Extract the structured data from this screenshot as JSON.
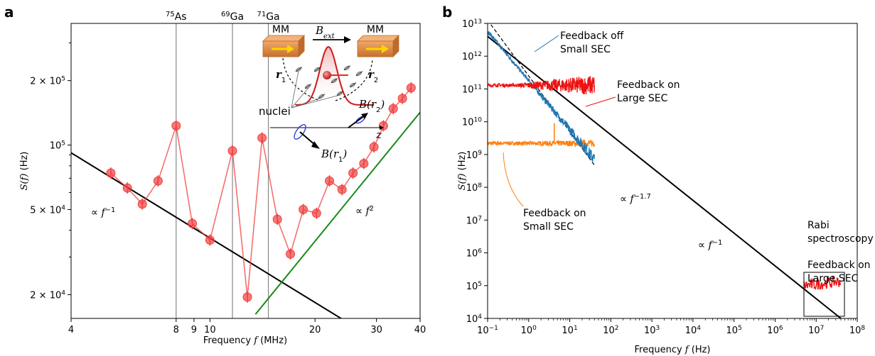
{
  "colors": {
    "data_red": "#f04040",
    "fit_black": "#000000",
    "fit_green": "#1a8a1a",
    "feedback_off_small": "#1f77b4",
    "feedback_on_large": "#ee1111",
    "feedback_on_small": "#ff7f0e",
    "grid_gray": "#888888",
    "magnet": "#e8924a"
  },
  "chart_data": [
    {
      "panel": "a",
      "type": "line",
      "xlabel_prefix": "Frequency ",
      "xlabel_var": "f",
      "xlabel_suffix": " (MHz)",
      "ylabel_prefix": "S(f)",
      "ylabel_suffix": " (Hz)",
      "xscale": "log",
      "yscale": "log",
      "xlim": [
        4,
        40
      ],
      "ylim": [
        15500,
        370000
      ],
      "xticks": [
        4,
        8,
        9,
        10,
        20,
        30,
        40
      ],
      "yticks": [
        {
          "value": 20000,
          "mant": "2 × 10",
          "exp": "4"
        },
        {
          "value": 50000,
          "mant": "5 × 10",
          "exp": "4"
        },
        {
          "value": 100000,
          "mant": "10",
          "exp": "5"
        },
        {
          "value": 200000,
          "mant": "2 × 10",
          "exp": "5"
        }
      ],
      "isotope_lines": [
        {
          "freq": 8.0,
          "mass": "75",
          "symbol": "As"
        },
        {
          "freq": 11.6,
          "mass": "69",
          "symbol": "Ga"
        },
        {
          "freq": 14.7,
          "mass": "71",
          "symbol": "Ga"
        }
      ],
      "series": [
        {
          "x": [
            5.2,
            5.8,
            6.4,
            7.1,
            8.0,
            8.9,
            10.0,
            11.6,
            12.8,
            14.1,
            15.6,
            17.0,
            18.5,
            20.2,
            22.0,
            23.9,
            25.7,
            27.6,
            29.5,
            31.4,
            33.5,
            35.6,
            37.7
          ],
          "y": [
            74000,
            63000,
            53000,
            68000,
            123000,
            43000,
            36000,
            94000,
            19500,
            108000,
            45000,
            31000,
            50000,
            48000,
            68000,
            62000,
            74000,
            82000,
            98000,
            123000,
            148000,
            165000,
            185000
          ]
        }
      ],
      "fits": [
        {
          "kind": "power",
          "slope": -1,
          "x_range": [
            4,
            24.5
          ],
          "y_at_start": 92000,
          "color_key": "fit_black",
          "label_pre": "∝ ",
          "label_var": "f",
          "label_exp": "−1"
        },
        {
          "kind": "power",
          "slope": 2,
          "x_range": [
            13.5,
            40
          ],
          "y_at_start": 16200,
          "color_key": "fit_green",
          "label_pre": "∝ ",
          "label_var": "f",
          "label_exp": "2"
        }
      ],
      "inset": {
        "magnet_label": "MM",
        "field_label": "B",
        "field_sub": "ext",
        "r1_label": "r",
        "r1_sub": "1",
        "r2_label": "r",
        "r2_sub": "2",
        "nuclei_label": "nuclei",
        "b_r1_label": "B(r",
        "b_r1_sub": "1",
        "b_r2_label": "B(r",
        "b_r2_sub": "2",
        "z_label": "z",
        "close_paren": ")"
      }
    },
    {
      "panel": "b",
      "type": "line",
      "xlabel_prefix": "Frequency ",
      "xlabel_var": "f",
      "xlabel_suffix": " (Hz)",
      "ylabel_prefix": "S(f)",
      "ylabel_suffix": " (Hz)",
      "xscale": "log",
      "yscale": "log",
      "xlim": [
        0.1,
        100000000
      ],
      "ylim": [
        10000,
        10000000000000
      ],
      "xtick_exps": [
        "−1",
        "0",
        "1",
        "2",
        "3",
        "4",
        "5",
        "6",
        "7",
        "8"
      ],
      "ytick_exps": [
        "4",
        "5",
        "6",
        "7",
        "8",
        "9",
        "10",
        "11",
        "12",
        "13"
      ],
      "tick_base": "10",
      "fits": [
        {
          "slope": -1,
          "x_range": [
            0.1,
            40000000
          ],
          "y_at_1": 400000000000,
          "style": "solid",
          "label_pre": "∝ ",
          "label_var": "f",
          "label_exp": "−1"
        },
        {
          "slope": -1.7,
          "x_range": [
            0.1,
            40
          ],
          "y_at_1": 250000000000,
          "style": "dashed",
          "label_pre": "∝ ",
          "label_var": "f",
          "label_exp": "−1.7"
        }
      ],
      "series": [
        {
          "name_lines": [
            "Feedback off",
            "Small SEC"
          ],
          "color_key": "feedback_off_small",
          "shape": "power",
          "x_range": [
            0.1,
            40
          ],
          "y_at_1": 180000000000,
          "slope": -1.5
        },
        {
          "name_lines": [
            "Feedback on",
            "Large SEC"
          ],
          "color_key": "feedback_on_large",
          "shape": "flat",
          "x_range": [
            0.1,
            40
          ],
          "y_level": 130000000000,
          "roll_off": 60000000000
        },
        {
          "name_lines": [
            "Feedback on",
            "Small SEC"
          ],
          "color_key": "feedback_on_small",
          "shape": "flat",
          "x_range": [
            0.1,
            40
          ],
          "y_level": 2200000000,
          "roll_off": 400000000
        },
        {
          "name_lines": [
            "Feedback on",
            "Large SEC"
          ],
          "color_key": "feedback_on_large",
          "shape": "rabi",
          "x_range": [
            5000000,
            40000000
          ],
          "y_level": 100000
        }
      ],
      "rabi_label_lines": [
        "Rabi",
        "spectroscopy"
      ]
    }
  ],
  "panel_labels": [
    "a",
    "b"
  ]
}
